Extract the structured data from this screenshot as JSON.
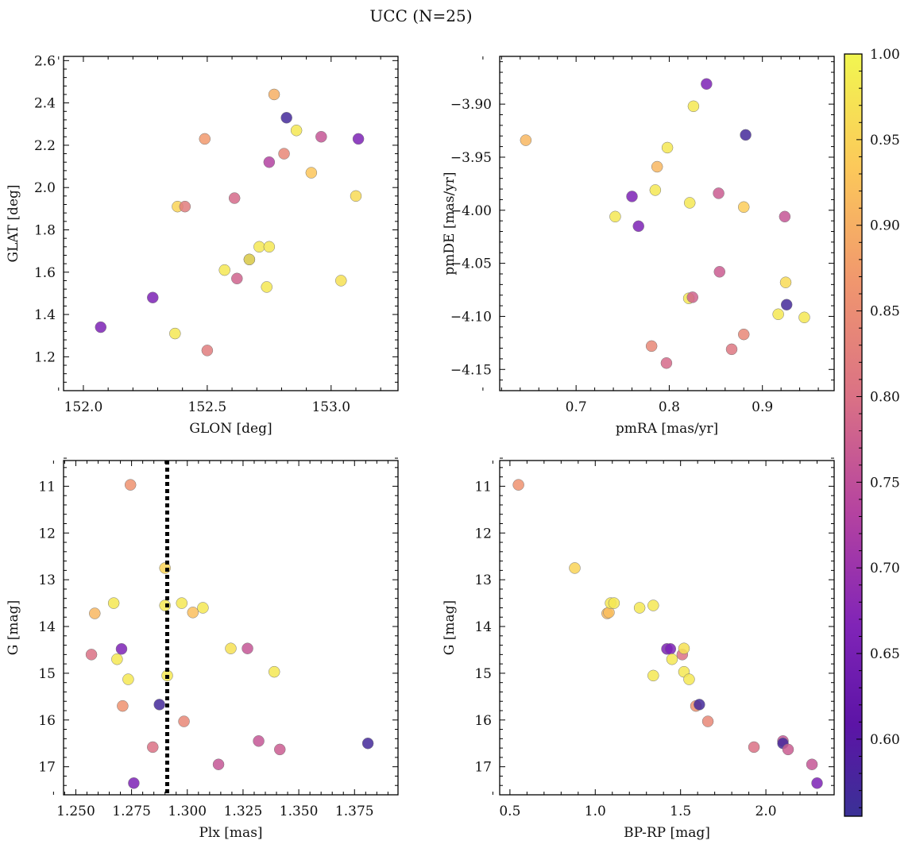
{
  "figure_title": "UCC (N=25)",
  "colorbar": {
    "min": 0.555,
    "max": 1.0,
    "ticks": [
      "0.60",
      "0.65",
      "0.70",
      "0.75",
      "0.80",
      "0.85",
      "0.90",
      "0.95",
      "1.00"
    ],
    "tick_values": [
      0.6,
      0.65,
      0.7,
      0.75,
      0.8,
      0.85,
      0.9,
      0.95,
      1.0
    ],
    "colormap": "plasma"
  },
  "chart_data": [
    {
      "type": "scatter",
      "name": "glon-glat",
      "xlabel": "GLON [deg]",
      "ylabel": "GLAT [deg]",
      "xlim": [
        151.92,
        153.27
      ],
      "ylim": [
        1.04,
        2.62
      ],
      "xticks": [
        152.0,
        152.5,
        153.0
      ],
      "xtick_labels": [
        "152.0",
        "152.5",
        "153.0"
      ],
      "yticks": [
        1.2,
        1.4,
        1.6,
        1.8,
        2.0,
        2.2,
        2.4,
        2.6
      ],
      "ytick_labels": [
        "1.2",
        "1.4",
        "1.6",
        "1.8",
        "2.0",
        "2.2",
        "2.4",
        "2.6"
      ],
      "invert_y": false,
      "vline": null,
      "points": [
        {
          "x": 152.07,
          "y": 1.34,
          "c": 0.66
        },
        {
          "x": 152.28,
          "y": 1.48,
          "c": 0.66
        },
        {
          "x": 152.37,
          "y": 1.31,
          "c": 0.98
        },
        {
          "x": 152.38,
          "y": 1.91,
          "c": 0.95
        },
        {
          "x": 152.41,
          "y": 1.91,
          "c": 0.82
        },
        {
          "x": 152.49,
          "y": 2.23,
          "c": 0.87
        },
        {
          "x": 152.5,
          "y": 1.23,
          "c": 0.82
        },
        {
          "x": 152.57,
          "y": 1.61,
          "c": 0.98
        },
        {
          "x": 152.61,
          "y": 1.95,
          "c": 0.79
        },
        {
          "x": 152.62,
          "y": 1.57,
          "c": 0.78
        },
        {
          "x": 152.67,
          "y": 1.66,
          "c": 0.57
        },
        {
          "x": 152.67,
          "y": 1.66,
          "c": 0.98
        },
        {
          "x": 152.71,
          "y": 1.72,
          "c": 0.98
        },
        {
          "x": 152.74,
          "y": 1.53,
          "c": 0.98
        },
        {
          "x": 152.75,
          "y": 1.72,
          "c": 0.98
        },
        {
          "x": 152.75,
          "y": 2.12,
          "c": 0.73
        },
        {
          "x": 152.77,
          "y": 2.44,
          "c": 0.9
        },
        {
          "x": 152.81,
          "y": 2.16,
          "c": 0.84
        },
        {
          "x": 152.82,
          "y": 2.33,
          "c": 0.57
        },
        {
          "x": 152.86,
          "y": 2.27,
          "c": 0.98
        },
        {
          "x": 152.92,
          "y": 2.07,
          "c": 0.93
        },
        {
          "x": 152.96,
          "y": 2.24,
          "c": 0.76
        },
        {
          "x": 153.04,
          "y": 1.56,
          "c": 0.97
        },
        {
          "x": 153.1,
          "y": 1.96,
          "c": 0.96
        },
        {
          "x": 153.11,
          "y": 2.23,
          "c": 0.66
        }
      ]
    },
    {
      "type": "scatter",
      "name": "pmra-pmde",
      "xlabel": "pmRA [mas/yr]",
      "ylabel": "pmDE [mas/yr]",
      "xlim": [
        0.618,
        0.977
      ],
      "ylim": [
        -4.17,
        -3.855
      ],
      "xticks": [
        0.7,
        0.8,
        0.9
      ],
      "xtick_labels": [
        "0.7",
        "0.8",
        "0.9"
      ],
      "yticks": [
        -4.15,
        -4.1,
        -4.05,
        -4.0,
        -3.95,
        -3.9
      ],
      "ytick_labels": [
        "−4.15",
        "−4.10",
        "−4.05",
        "−4.00",
        "−3.95",
        "−3.90"
      ],
      "invert_y": false,
      "vline": null,
      "points": [
        {
          "x": 0.646,
          "y": -3.934,
          "c": 0.91
        },
        {
          "x": 0.742,
          "y": -4.006,
          "c": 0.98
        },
        {
          "x": 0.76,
          "y": -3.987,
          "c": 0.66
        },
        {
          "x": 0.767,
          "y": -4.015,
          "c": 0.66
        },
        {
          "x": 0.781,
          "y": -4.128,
          "c": 0.84
        },
        {
          "x": 0.785,
          "y": -3.981,
          "c": 0.98
        },
        {
          "x": 0.787,
          "y": -3.959,
          "c": 0.91
        },
        {
          "x": 0.797,
          "y": -4.144,
          "c": 0.79
        },
        {
          "x": 0.798,
          "y": -3.941,
          "c": 0.98
        },
        {
          "x": 0.821,
          "y": -4.083,
          "c": 0.98
        },
        {
          "x": 0.822,
          "y": -3.993,
          "c": 0.98
        },
        {
          "x": 0.825,
          "y": -4.082,
          "c": 0.78
        },
        {
          "x": 0.826,
          "y": -3.902,
          "c": 0.98
        },
        {
          "x": 0.84,
          "y": -3.881,
          "c": 0.66
        },
        {
          "x": 0.853,
          "y": -3.984,
          "c": 0.77
        },
        {
          "x": 0.854,
          "y": -4.058,
          "c": 0.77
        },
        {
          "x": 0.867,
          "y": -4.131,
          "c": 0.81
        },
        {
          "x": 0.88,
          "y": -3.997,
          "c": 0.94
        },
        {
          "x": 0.88,
          "y": -4.117,
          "c": 0.84
        },
        {
          "x": 0.882,
          "y": -3.929,
          "c": 0.57
        },
        {
          "x": 0.917,
          "y": -4.098,
          "c": 0.98
        },
        {
          "x": 0.924,
          "y": -4.006,
          "c": 0.76
        },
        {
          "x": 0.925,
          "y": -4.068,
          "c": 0.96
        },
        {
          "x": 0.926,
          "y": -4.089,
          "c": 0.57
        },
        {
          "x": 0.945,
          "y": -4.101,
          "c": 0.98
        }
      ]
    },
    {
      "type": "scatter",
      "name": "plx-g",
      "xlabel": "Plx [mas]",
      "ylabel": "G [mag]",
      "xlim": [
        1.2445,
        1.3945
      ],
      "ylim": [
        17.6,
        10.45
      ],
      "xticks": [
        1.25,
        1.275,
        1.3,
        1.325,
        1.35,
        1.375
      ],
      "xtick_labels": [
        "1.250",
        "1.275",
        "1.300",
        "1.325",
        "1.350",
        "1.375"
      ],
      "yticks": [
        11,
        12,
        13,
        14,
        15,
        16,
        17
      ],
      "ytick_labels": [
        "11",
        "12",
        "13",
        "14",
        "15",
        "16",
        "17"
      ],
      "invert_y": true,
      "vline": 1.291,
      "points": [
        {
          "x": 1.257,
          "y": 14.6,
          "c": 0.8
        },
        {
          "x": 1.2585,
          "y": 13.72,
          "c": 0.91
        },
        {
          "x": 1.267,
          "y": 13.5,
          "c": 0.98
        },
        {
          "x": 1.2685,
          "y": 14.7,
          "c": 0.98
        },
        {
          "x": 1.2705,
          "y": 14.48,
          "c": 0.66
        },
        {
          "x": 1.271,
          "y": 15.7,
          "c": 0.86
        },
        {
          "x": 1.2735,
          "y": 15.13,
          "c": 0.98
        },
        {
          "x": 1.2745,
          "y": 10.97,
          "c": 0.86
        },
        {
          "x": 1.276,
          "y": 17.35,
          "c": 0.66
        },
        {
          "x": 1.2845,
          "y": 16.58,
          "c": 0.8
        },
        {
          "x": 1.2875,
          "y": 15.67,
          "c": 0.57
        },
        {
          "x": 1.29,
          "y": 12.75,
          "c": 0.95
        },
        {
          "x": 1.29,
          "y": 13.55,
          "c": 0.98
        },
        {
          "x": 1.291,
          "y": 15.05,
          "c": 0.98
        },
        {
          "x": 1.2975,
          "y": 13.5,
          "c": 0.98
        },
        {
          "x": 1.2985,
          "y": 16.03,
          "c": 0.84
        },
        {
          "x": 1.3025,
          "y": 13.7,
          "c": 0.92
        },
        {
          "x": 1.307,
          "y": 13.6,
          "c": 0.98
        },
        {
          "x": 1.314,
          "y": 16.95,
          "c": 0.76
        },
        {
          "x": 1.3195,
          "y": 14.47,
          "c": 0.97
        },
        {
          "x": 1.327,
          "y": 14.47,
          "c": 0.76
        },
        {
          "x": 1.332,
          "y": 16.45,
          "c": 0.76
        },
        {
          "x": 1.339,
          "y": 14.97,
          "c": 0.98
        },
        {
          "x": 1.3415,
          "y": 16.63,
          "c": 0.77
        },
        {
          "x": 1.381,
          "y": 16.5,
          "c": 0.57
        }
      ]
    },
    {
      "type": "scatter",
      "name": "bprp-g",
      "xlabel": "BP-RP [mag]",
      "ylabel": "G [mag]",
      "xlim": [
        0.44,
        2.4
      ],
      "ylim": [
        17.6,
        10.45
      ],
      "xticks": [
        0.5,
        1.0,
        1.5,
        2.0
      ],
      "xtick_labels": [
        "0.5",
        "1.0",
        "1.5",
        "2.0"
      ],
      "yticks": [
        11,
        12,
        13,
        14,
        15,
        16,
        17
      ],
      "ytick_labels": [
        "11",
        "12",
        "13",
        "14",
        "15",
        "16",
        "17"
      ],
      "invert_y": true,
      "vline": null,
      "points": [
        {
          "x": 0.55,
          "y": 10.97,
          "c": 0.86
        },
        {
          "x": 0.88,
          "y": 12.75,
          "c": 0.95
        },
        {
          "x": 1.07,
          "y": 13.72,
          "c": 0.91
        },
        {
          "x": 1.08,
          "y": 13.7,
          "c": 0.92
        },
        {
          "x": 1.09,
          "y": 13.5,
          "c": 0.98
        },
        {
          "x": 1.11,
          "y": 13.5,
          "c": 0.98
        },
        {
          "x": 1.26,
          "y": 13.6,
          "c": 0.98
        },
        {
          "x": 1.34,
          "y": 13.55,
          "c": 0.98
        },
        {
          "x": 1.34,
          "y": 15.05,
          "c": 0.98
        },
        {
          "x": 1.42,
          "y": 14.48,
          "c": 0.66
        },
        {
          "x": 1.44,
          "y": 14.48,
          "c": 0.66
        },
        {
          "x": 1.45,
          "y": 14.7,
          "c": 0.98
        },
        {
          "x": 1.51,
          "y": 14.6,
          "c": 0.8
        },
        {
          "x": 1.52,
          "y": 14.47,
          "c": 0.97
        },
        {
          "x": 1.52,
          "y": 14.97,
          "c": 0.98
        },
        {
          "x": 1.55,
          "y": 15.13,
          "c": 0.98
        },
        {
          "x": 1.59,
          "y": 15.7,
          "c": 0.86
        },
        {
          "x": 1.61,
          "y": 15.67,
          "c": 0.57
        },
        {
          "x": 1.66,
          "y": 16.03,
          "c": 0.84
        },
        {
          "x": 1.93,
          "y": 16.58,
          "c": 0.8
        },
        {
          "x": 2.1,
          "y": 16.45,
          "c": 0.76
        },
        {
          "x": 2.1,
          "y": 16.5,
          "c": 0.57
        },
        {
          "x": 2.13,
          "y": 16.63,
          "c": 0.77
        },
        {
          "x": 2.27,
          "y": 16.95,
          "c": 0.76
        },
        {
          "x": 2.3,
          "y": 17.35,
          "c": 0.66
        }
      ]
    }
  ]
}
